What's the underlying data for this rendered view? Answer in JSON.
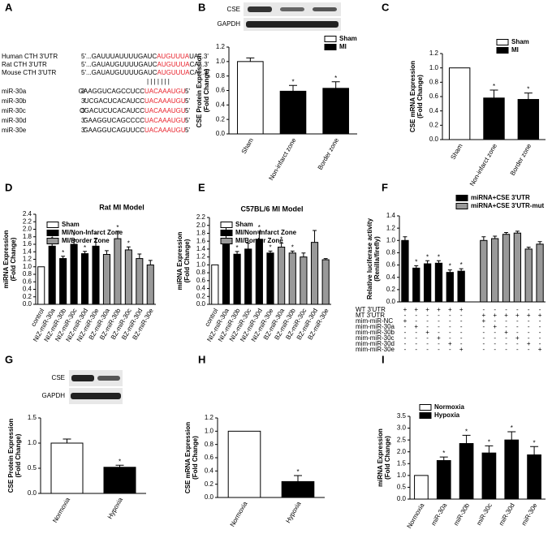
{
  "panel_labels": [
    "A",
    "B",
    "C",
    "D",
    "E",
    "F",
    "G",
    "H",
    "I"
  ],
  "alignment": {
    "targets": [
      {
        "name": "Human CTH 3'UTR",
        "left": "5'...GAUUUAUUUUGAUC",
        "red": "AUGUUUA",
        "right": "UA...3'"
      },
      {
        "name": "Rat CTH 3'UTR",
        "left": "5'...GAUAUGUUUUGAUC",
        "red": "AUGUUUA",
        "right": "CA...3'"
      },
      {
        "name": "Mouse CTH 3'UTR",
        "left": "5'...GAUAUGUUUUGAUC",
        "red": "AUGUUUA",
        "right": "CA...3'"
      }
    ],
    "mirnas": [
      {
        "name": "miR-30a",
        "end3": "3'",
        "seq": "GAAGGUCAGCCUCC",
        "red": "UACAAAUGU",
        "end5": "5'"
      },
      {
        "name": "miR-30b",
        "end3": "3'",
        "seq": "UCGACUCACAUCC",
        "red": "UACAAAUGU",
        "end5": "5'"
      },
      {
        "name": "miR-30c",
        "end3": "3'",
        "seq": "CGACUCUCACAUCC",
        "red": "UACAAAUGU",
        "end5": "5'"
      },
      {
        "name": "miR-30d",
        "end3": "3'",
        "seq": "GAAGGUCAGCCCC",
        "red": "UACAAAUGU",
        "end5": "5'"
      },
      {
        "name": "miR-30e",
        "end3": "3'",
        "seq": "GAAGGUCAGUUCC",
        "red": "UACAAAUGU",
        "end5": "5'"
      }
    ]
  },
  "blot_b": [
    "CSE",
    "GAPDH"
  ],
  "blot_g": [
    "CSE",
    "GAPDH"
  ],
  "chart_data": [
    {
      "type": "bar",
      "ylabel": [
        "CSE Protein Expression",
        "(Fold Change)"
      ],
      "categories": [
        "Sham",
        "Non-infarct zone",
        "Border zone"
      ],
      "values": [
        1.0,
        0.59,
        0.63
      ],
      "errors": [
        0.05,
        0.08,
        0.09
      ],
      "colors": [
        "#ffffff",
        "#000000",
        "#000000"
      ],
      "stars": [
        null,
        "*",
        "*"
      ],
      "legend": [
        {
          "name": "Sham",
          "color": "#ffffff"
        },
        {
          "name": "MI",
          "color": "#000000"
        }
      ],
      "ylim": [
        0,
        1.2
      ],
      "yticks": [
        {
          "value": 0,
          "label": "0.0"
        },
        0.2,
        0.4,
        0.6,
        0.8,
        {
          "value": 1,
          "label": "1.0"
        },
        1.2
      ]
    },
    {
      "type": "bar",
      "ylabel": [
        "CSE mRNA Expression",
        "(Fold Change)"
      ],
      "categories": [
        "Sham",
        "Non-infarct zone",
        "Border zone"
      ],
      "values": [
        1.0,
        0.58,
        0.56
      ],
      "errors": [
        null,
        0.11,
        0.09
      ],
      "colors": [
        "#ffffff",
        "#000000",
        "#000000"
      ],
      "stars": [
        null,
        "*",
        "*"
      ],
      "legend": [
        {
          "name": "Sham",
          "color": "#ffffff"
        },
        {
          "name": "MI",
          "color": "#000000"
        }
      ],
      "ylim": [
        0,
        1.2
      ],
      "yticks": [
        {
          "value": 0,
          "label": "0.0"
        },
        0.2,
        0.4,
        0.6,
        0.8,
        {
          "value": 1,
          "label": "1.0"
        },
        1.2
      ]
    },
    {
      "type": "bar",
      "title": "Rat MI Model",
      "ylabel": [
        "miRNA Expression",
        "(Fold Change)"
      ],
      "categories": [
        "control",
        "NIZ-miR-30a",
        "NIZ-miR-30b",
        "NIZ-miR-30c",
        "NIZ-miR-30d",
        "NIZ-miR-30e",
        "BZ-miR-30a",
        "BZ-miR-30b",
        "BZ-miR-30c",
        "BZ-miR-30d",
        "BZ-miR-30e"
      ],
      "values": [
        1.0,
        1.55,
        1.22,
        1.6,
        1.35,
        1.55,
        1.33,
        1.75,
        1.45,
        1.22,
        1.05
      ],
      "errors": [
        null,
        0.1,
        0.06,
        0.12,
        0.06,
        0.2,
        0.1,
        0.2,
        0.08,
        0.12,
        0.12
      ],
      "colors": [
        "#ffffff",
        "#000000",
        "#000000",
        "#000000",
        "#000000",
        "#000000",
        "#999999",
        "#999999",
        "#999999",
        "#999999",
        "#999999"
      ],
      "stars": [
        null,
        "*",
        "*",
        "*",
        "*",
        "*",
        null,
        "*",
        "*",
        null,
        null
      ],
      "legend": [
        {
          "name": "Sham",
          "color": "#ffffff"
        },
        {
          "name": "MI/Non-Infarct Zone",
          "color": "#000000"
        },
        {
          "name": "MI/Border Zone",
          "color": "#999999"
        }
      ],
      "ylim": [
        0,
        2.4
      ],
      "yticks": [
        {
          "value": 0,
          "label": "0.0"
        },
        0.2,
        0.4,
        0.6,
        0.8,
        {
          "value": 1,
          "label": "1.0"
        },
        1.2,
        1.4,
        1.6,
        1.8,
        {
          "value": 2,
          "label": "2.0"
        },
        2.2,
        2.4
      ]
    },
    {
      "type": "bar",
      "title": "C57BL/6  MI Model",
      "ylabel": [
        "miRNA Expression",
        "(Fold Change)"
      ],
      "categories": [
        "control",
        "NIZ-miR-30a",
        "NIZ-miR-30b",
        "NIZ-miR-30c",
        "NIZ-miR-30d",
        "NIZ-miR-30e",
        "BZ-miR-30a",
        "BZ-miR-30b",
        "BZ-miR-30c",
        "BZ-miR-30d",
        "BZ-miR-30e"
      ],
      "values": [
        1.0,
        1.6,
        1.27,
        1.4,
        1.65,
        1.3,
        1.45,
        1.3,
        1.2,
        1.57,
        1.13
      ],
      "errors": [
        null,
        0.4,
        0.07,
        0.15,
        0.2,
        0.05,
        0.1,
        0.05,
        0.1,
        0.3,
        0.03
      ],
      "colors": [
        "#ffffff",
        "#000000",
        "#000000",
        "#000000",
        "#000000",
        "#000000",
        "#999999",
        "#999999",
        "#999999",
        "#999999",
        "#999999"
      ],
      "stars": [
        null,
        null,
        "*",
        null,
        "*",
        "*",
        "*",
        "*",
        null,
        null,
        null
      ],
      "legend": [
        {
          "name": "Sham",
          "color": "#ffffff"
        },
        {
          "name": "MI/Non-Infarct Zone",
          "color": "#000000"
        },
        {
          "name": "MI/Border Zone",
          "color": "#999999"
        }
      ],
      "ylim": [
        0,
        2.2
      ],
      "yticks": [
        {
          "value": 0,
          "label": "0.0"
        },
        0.2,
        0.4,
        0.6,
        0.8,
        {
          "value": 1,
          "label": "1.0"
        },
        1.2,
        1.4,
        1.6,
        1.8,
        {
          "value": 2,
          "label": "2.0"
        },
        2.2
      ]
    },
    {
      "type": "bar",
      "ylabel": [
        "Relative luciferase activity",
        "(Renilla/firefly)"
      ],
      "series": [
        {
          "name": "miRNA+CSE 3'UTR",
          "color": "#000000",
          "values": [
            1.0,
            0.55,
            0.62,
            0.63,
            0.48,
            0.5
          ],
          "errors": [
            0.06,
            0.04,
            0.05,
            0.04,
            0.04,
            0.04
          ],
          "stars": [
            null,
            "*",
            "*",
            "*",
            "*",
            "*"
          ]
        },
        {
          "name": "miRNA+CSE 3'UTR-mut",
          "color": "#999999",
          "values": [
            1.0,
            1.03,
            1.1,
            1.12,
            0.86,
            0.94
          ],
          "errors": [
            0.06,
            0.04,
            0.03,
            0.03,
            0.03,
            0.04
          ]
        }
      ],
      "conditions": [
        {
          "label": "WT 3'UTR",
          "marks": [
            "+",
            "+",
            "+",
            "+",
            "+",
            "+",
            "-",
            "-",
            "-",
            "-",
            "-",
            "-"
          ]
        },
        {
          "label": "MT 3'UTR",
          "marks": [
            "-",
            "-",
            "-",
            "-",
            "-",
            "-",
            "+",
            "+",
            "+",
            "+",
            "+",
            "+"
          ]
        },
        {
          "label": "mim-miR-NC",
          "marks": [
            "+",
            "-",
            "-",
            "-",
            "-",
            "-",
            "+",
            "-",
            "-",
            "-",
            "-",
            "-"
          ]
        },
        {
          "label": "mim-miR-30a",
          "marks": [
            "-",
            "+",
            "-",
            "-",
            "-",
            "-",
            "-",
            "+",
            "-",
            "-",
            "-",
            "-"
          ]
        },
        {
          "label": "mim-miR-30b",
          "marks": [
            "-",
            "-",
            "+",
            "-",
            "-",
            "-",
            "-",
            "-",
            "+",
            "-",
            "-",
            "-"
          ]
        },
        {
          "label": "mim-miR-30c",
          "marks": [
            "-",
            "-",
            "-",
            "+",
            "-",
            "-",
            "-",
            "-",
            "-",
            "+",
            "-",
            "-"
          ]
        },
        {
          "label": "mim-miR-30d",
          "marks": [
            "-",
            "-",
            "-",
            "-",
            "+",
            "-",
            "-",
            "-",
            "-",
            "-",
            "+",
            "-"
          ]
        },
        {
          "label": "mim-miR-30e",
          "marks": [
            "-",
            "-",
            "-",
            "-",
            "-",
            "+",
            "-",
            "-",
            "-",
            "-",
            "-",
            "+"
          ]
        }
      ],
      "ylim": [
        0,
        1.4
      ],
      "yticks": [
        {
          "value": 0,
          "label": "0.0"
        },
        0.2,
        0.4,
        0.6,
        0.8,
        {
          "value": 1,
          "label": "1.0"
        },
        1.2,
        1.4
      ]
    },
    {
      "type": "bar",
      "ylabel": [
        "CSE Protein Expression",
        "(Fold Change)"
      ],
      "categories": [
        "Normoxia",
        "Hypoxia"
      ],
      "values": [
        1.0,
        0.52
      ],
      "errors": [
        0.08,
        0.04
      ],
      "colors": [
        "#ffffff",
        "#000000"
      ],
      "stars": [
        null,
        "*"
      ],
      "ylim": [
        0,
        1.5
      ],
      "yticks": [
        {
          "value": 0,
          "label": "0.0"
        },
        0.5,
        {
          "value": 1,
          "label": "1.0"
        },
        1.5
      ]
    },
    {
      "type": "bar",
      "ylabel": [
        "CSE mRNA Expression",
        "(Fold Change)"
      ],
      "categories": [
        "Normoxia",
        "Hypoxia"
      ],
      "values": [
        1.0,
        0.24
      ],
      "errors": [
        null,
        0.09
      ],
      "colors": [
        "#ffffff",
        "#000000"
      ],
      "stars": [
        null,
        "*"
      ],
      "ylim": [
        0,
        1.2
      ],
      "yticks": [
        {
          "value": 0,
          "label": "0.0"
        },
        0.2,
        0.4,
        0.6,
        0.8,
        {
          "value": 1,
          "label": "1.0"
        },
        1.2
      ]
    },
    {
      "type": "bar",
      "ylabel": [
        "miRNA Expression",
        "(Fold Change)"
      ],
      "categories": [
        "Normoxia",
        "miR-30a",
        "miR-30b",
        "miR-30c",
        "miR-30d",
        "miR-30e"
      ],
      "values": [
        1.0,
        1.63,
        2.35,
        1.95,
        2.5,
        1.87
      ],
      "errors": [
        null,
        0.15,
        0.35,
        0.3,
        0.35,
        0.35
      ],
      "colors": [
        "#ffffff",
        "#000000",
        "#000000",
        "#000000",
        "#000000",
        "#000000"
      ],
      "stars": [
        null,
        "*",
        "*",
        "*",
        "*",
        "*"
      ],
      "legend": [
        {
          "name": "Normoxia",
          "color": "#ffffff"
        },
        {
          "name": "Hypoxia",
          "color": "#000000"
        }
      ],
      "ylim": [
        0,
        3.5
      ],
      "yticks": [
        {
          "value": 0,
          "label": "0.0"
        },
        0.5,
        {
          "value": 1,
          "label": "1.0"
        },
        1.5,
        {
          "value": 2,
          "label": "2.0"
        },
        2.5,
        {
          "value": 3,
          "label": "3.0"
        },
        3.5
      ]
    }
  ]
}
